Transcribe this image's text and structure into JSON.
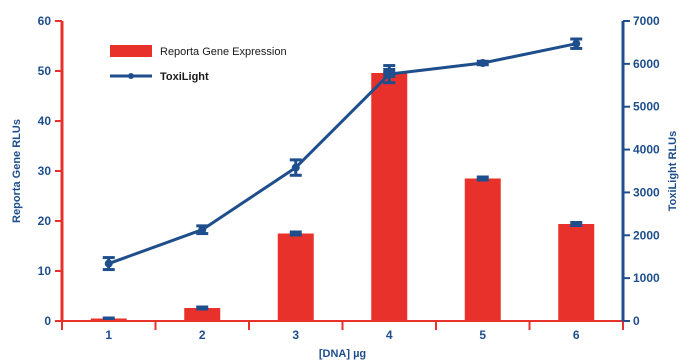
{
  "chart_data": {
    "type": "bar",
    "categories": [
      "1",
      "2",
      "3",
      "4",
      "5",
      "6"
    ],
    "xlabel": "[DNA] µg",
    "colors": {
      "bar": "#e8312a",
      "line": "#1f4e8c",
      "left_axis": "#e8312a",
      "right_axis": "#1f4e8c",
      "label": "#1f4e8c"
    },
    "series": [
      {
        "name": "Reporta Gene Expression",
        "type": "bar",
        "axis": "left",
        "values": [
          0.5,
          2.6,
          17.5,
          49.6,
          28.5,
          19.4
        ],
        "error": [
          0.2,
          0.3,
          0.4,
          0.8,
          0.4,
          0.4
        ]
      },
      {
        "name": "ToxiLight",
        "type": "line",
        "axis": "right",
        "values": [
          1340,
          2130,
          3580,
          5760,
          6020,
          6470
        ],
        "error": [
          140,
          90,
          180,
          200,
          40,
          110
        ]
      }
    ],
    "y_left": {
      "label": "Reporta Gene RLUs",
      "ylim": [
        0,
        60
      ],
      "ticks": [
        "0",
        "10",
        "20",
        "30",
        "40",
        "50",
        "60"
      ]
    },
    "y_right": {
      "label": "ToxiLight RLUs",
      "ylim": [
        0,
        7000
      ],
      "ticks": [
        "0",
        "1000",
        "2000",
        "3000",
        "4000",
        "5000",
        "6000",
        "7000"
      ]
    },
    "grid": false,
    "legend_position": "top-left"
  }
}
